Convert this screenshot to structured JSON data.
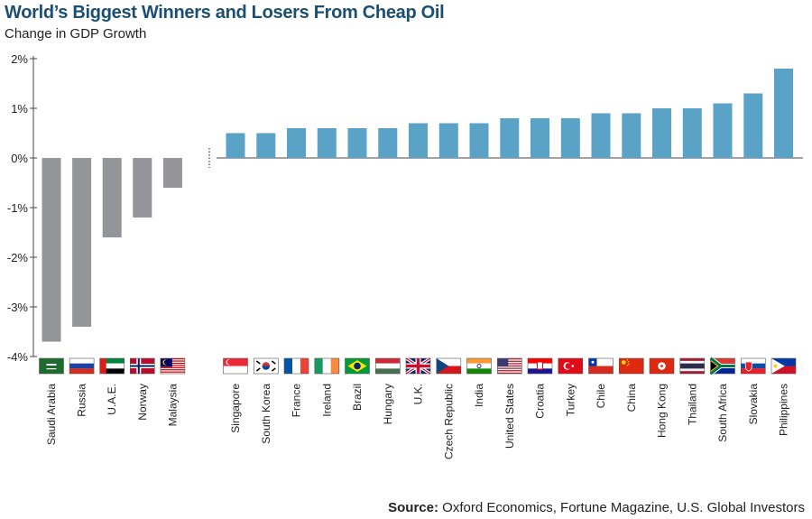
{
  "header": {
    "title": "World’s Biggest Winners and Losers From Cheap Oil",
    "subtitle": "Change in GDP Growth"
  },
  "footer": {
    "source_label": "Source:",
    "source_text": "Oxford Economics, Fortune Magazine, U.S. Global Investors"
  },
  "colors": {
    "losers": "#939598",
    "winners": "#5ba3c6",
    "title": "#1b4f72"
  },
  "chart_data": {
    "type": "bar",
    "title": "World’s Biggest Winners and Losers From Cheap Oil",
    "subtitle": "Change in GDP Growth",
    "xlabel": "",
    "ylabel": "",
    "ylim": [
      -4,
      2
    ],
    "yticks": [
      2,
      1,
      0,
      -1,
      -2,
      -3,
      -4
    ],
    "ytick_labels": [
      "2%",
      "1%",
      "0%",
      "-1%",
      "-2%",
      "-3%",
      "-4%"
    ],
    "grid": false,
    "legend": "none",
    "groups": [
      {
        "name": "losers",
        "categories": [
          "Saudi Arabia",
          "Russia",
          "U.A.E.",
          "Norway",
          "Malaysia"
        ],
        "values": [
          -3.7,
          -3.4,
          -1.6,
          -1.2,
          -0.6
        ]
      },
      {
        "name": "winners",
        "categories": [
          "Singapore",
          "South Korea",
          "France",
          "Ireland",
          "Brazil",
          "Hungary",
          "U.K.",
          "Czech Republic",
          "India",
          "United States",
          "Croatia",
          "Turkey",
          "Chile",
          "China",
          "Hong Kong",
          "Thailand",
          "South Africa",
          "Slovakia",
          "Philippines"
        ],
        "values": [
          0.5,
          0.5,
          0.6,
          0.6,
          0.6,
          0.6,
          0.7,
          0.7,
          0.7,
          0.8,
          0.8,
          0.8,
          0.9,
          0.9,
          1.0,
          1.0,
          1.1,
          1.3,
          1.8
        ]
      }
    ],
    "flags": [
      "saudi-arabia-flag-icon",
      "russia-flag-icon",
      "uae-flag-icon",
      "norway-flag-icon",
      "malaysia-flag-icon",
      "singapore-flag-icon",
      "south-korea-flag-icon",
      "france-flag-icon",
      "ireland-flag-icon",
      "brazil-flag-icon",
      "hungary-flag-icon",
      "uk-flag-icon",
      "czech-republic-flag-icon",
      "india-flag-icon",
      "united-states-flag-icon",
      "croatia-flag-icon",
      "turkey-flag-icon",
      "chile-flag-icon",
      "china-flag-icon",
      "hong-kong-flag-icon",
      "thailand-flag-icon",
      "south-africa-flag-icon",
      "slovakia-flag-icon",
      "philippines-flag-icon"
    ]
  }
}
